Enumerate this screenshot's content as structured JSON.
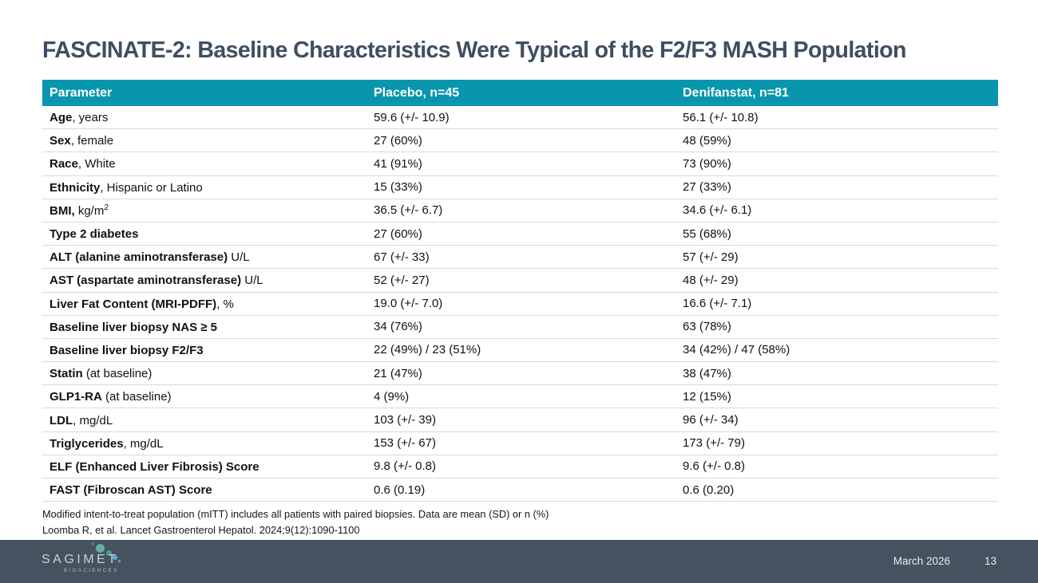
{
  "slide": {
    "title": "FASCINATE-2: Baseline Characteristics Were Typical of the F2/F3 MASH Population"
  },
  "table": {
    "headers": [
      "Parameter",
      "Placebo, n=45",
      "Denifanstat, n=81"
    ],
    "rows": [
      {
        "bold": "Age",
        "rest": ", years",
        "sup": "",
        "placebo": "59.6 (+/- 10.9)",
        "denifanstat": "56.1 (+/- 10.8)"
      },
      {
        "bold": "Sex",
        "rest": ", female",
        "sup": "",
        "placebo": "27 (60%)",
        "denifanstat": "48 (59%)"
      },
      {
        "bold": "Race",
        "rest": ", White",
        "sup": "",
        "placebo": "41 (91%)",
        "denifanstat": "73 (90%)"
      },
      {
        "bold": "Ethnicity",
        "rest": ", Hispanic or Latino",
        "sup": "",
        "placebo": "15 (33%)",
        "denifanstat": "27 (33%)"
      },
      {
        "bold": "BMI,",
        "rest": " kg/m",
        "sup": "2",
        "placebo": "36.5 (+/- 6.7)",
        "denifanstat": "34.6 (+/- 6.1)"
      },
      {
        "bold": "Type 2 diabetes",
        "rest": "",
        "sup": "",
        "placebo": "27 (60%)",
        "denifanstat": "55 (68%)"
      },
      {
        "bold": "ALT (alanine aminotransferase)",
        "rest": " U/L",
        "sup": "",
        "placebo": "67 (+/- 33)",
        "denifanstat": "57 (+/- 29)"
      },
      {
        "bold": "AST (aspartate aminotransferase)",
        "rest": " U/L",
        "sup": "",
        "placebo": "52 (+/- 27)",
        "denifanstat": "48 (+/- 29)"
      },
      {
        "bold": "Liver Fat Content (MRI-PDFF)",
        "rest": ", %",
        "sup": "",
        "placebo": "19.0 (+/- 7.0)",
        "denifanstat": "16.6 (+/- 7.1)"
      },
      {
        "bold": "Baseline liver biopsy NAS ≥ 5",
        "rest": "",
        "sup": "",
        "placebo": "34 (76%)",
        "denifanstat": "63 (78%)"
      },
      {
        "bold": "Baseline liver biopsy F2/F3",
        "rest": "",
        "sup": "",
        "placebo": "22 (49%) / 23 (51%)",
        "denifanstat": "34 (42%) / 47 (58%)"
      },
      {
        "bold": "Statin",
        "rest": " (at baseline)",
        "sup": "",
        "placebo": "21 (47%)",
        "denifanstat": "38 (47%)"
      },
      {
        "bold": "GLP1-RA",
        "rest": " (at baseline)",
        "sup": "",
        "placebo": "4 (9%)",
        "denifanstat": "12 (15%)"
      },
      {
        "bold": "LDL",
        "rest": ", mg/dL",
        "sup": "",
        "placebo": "103 (+/- 39)",
        "denifanstat": "96 (+/- 34)"
      },
      {
        "bold": "Triglycerides",
        "rest": ", mg/dL",
        "sup": "",
        "placebo": "153 (+/- 67)",
        "denifanstat": "173 (+/- 79)"
      },
      {
        "bold": "ELF (Enhanced Liver Fibrosis) Score",
        "rest": "",
        "sup": "",
        "placebo": "9.8 (+/- 0.8)",
        "denifanstat": "9.6 (+/- 0.8)"
      },
      {
        "bold": "FAST (Fibroscan AST) Score",
        "rest": "",
        "sup": "",
        "placebo": "0.6 (0.19)",
        "denifanstat": "0.6 (0.20)"
      }
    ]
  },
  "footnotes": {
    "line1": "Modified intent-to-treat population (mITT) includes all patients with paired biopsies. Data are mean (SD) or n (%)",
    "line2": "Loomba R, et al. Lancet Gastroenterol Hepatol. 2024;9(12):1090-1100"
  },
  "footer": {
    "logo_word": "SAGIMET",
    "logo_sub": "BIOSCIENCES",
    "date": "March 2026",
    "page_number": "13"
  },
  "colors": {
    "header_teal": "#0896AE",
    "title_color": "#3F4E62",
    "footer_bg": "#46525F",
    "row_border": "#D9D9D9",
    "logo_dot_green": "#5FB2A4",
    "logo_dot_dark_green": "#3E9E96",
    "logo_dot_blue": "#4FB3D1"
  }
}
